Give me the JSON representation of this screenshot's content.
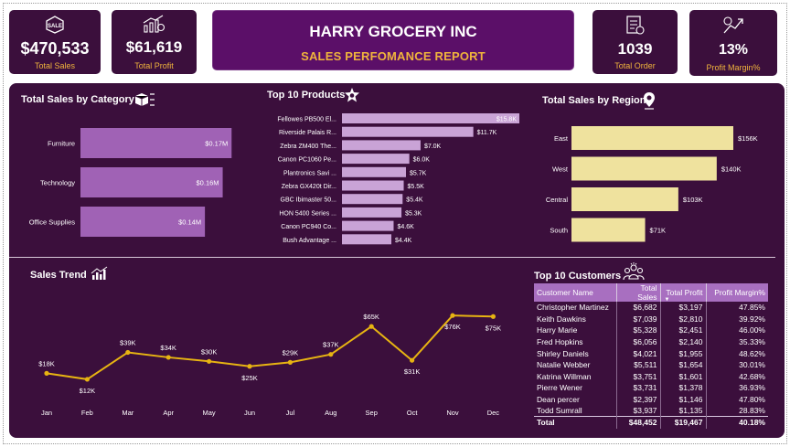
{
  "kpis": {
    "total_sales": {
      "value": "$470,533",
      "label": "Total Sales"
    },
    "total_profit": {
      "value": "$61,619",
      "label": "Total Profit"
    },
    "total_order": {
      "value": "1039",
      "label": "Total Order"
    },
    "profit_margin": {
      "value": "13%",
      "label": "Profit Margin%"
    }
  },
  "header": {
    "title": "HARRY GROCERY INC",
    "subtitle": "SALES PERFOMANCE REPORT"
  },
  "colors": {
    "bg": "#3b0f3c",
    "category_bar": "#a062b5",
    "product_bar": "#c9a3d6",
    "region_bar": "#efe29e",
    "trend_line": "#e7b412",
    "accent": "#f0b43c"
  },
  "icons": [
    "sales-tag-icon",
    "profit-chart-icon",
    "order-list-icon",
    "margin-chart-icon",
    "boxes-icon",
    "star-badge-icon",
    "location-pin-icon",
    "trend-chart-icon",
    "people-icon"
  ],
  "chart_data": [
    {
      "type": "bar",
      "orientation": "horizontal",
      "title": "Total Sales by Category",
      "categories": [
        "Furniture",
        "Technology",
        "Office Supplies"
      ],
      "values": [
        0.17,
        0.16,
        0.14
      ],
      "data_labels": [
        "$0.17M",
        "$0.16M",
        "$0.14M"
      ]
    },
    {
      "type": "bar",
      "orientation": "horizontal",
      "title": "Top 10 Products",
      "categories": [
        "Fellowes PB500 El...",
        "Riverside Palais R...",
        "Zebra ZM400 The...",
        "Canon PC1060 Pe...",
        "Plantronics Savi ...",
        "Zebra GX420t Dir...",
        "GBC Ibimaster 50...",
        "HON 5400 Series ...",
        "Canon PC940 Co...",
        "Bush Advantage ..."
      ],
      "values": [
        15.8,
        11.7,
        7.0,
        6.0,
        5.7,
        5.5,
        5.4,
        5.3,
        4.6,
        4.4
      ],
      "data_labels": [
        "$15.8K",
        "$11.7K",
        "$7.0K",
        "$6.0K",
        "$5.7K",
        "$5.5K",
        "$5.4K",
        "$5.3K",
        "$4.6K",
        "$4.4K"
      ]
    },
    {
      "type": "bar",
      "orientation": "horizontal",
      "title": "Total Sales by Region",
      "categories": [
        "East",
        "West",
        "Central",
        "South"
      ],
      "values": [
        156,
        140,
        103,
        71
      ],
      "data_labels": [
        "$156K",
        "$140K",
        "$103K",
        "$71K"
      ]
    },
    {
      "type": "line",
      "title": "Sales Trend",
      "categories": [
        "Jan",
        "Feb",
        "Mar",
        "Apr",
        "May",
        "Jun",
        "Jul",
        "Aug",
        "Sep",
        "Oct",
        "Nov",
        "Dec"
      ],
      "values": [
        18,
        12,
        39,
        34,
        30,
        25,
        29,
        37,
        65,
        31,
        76,
        75
      ],
      "data_labels": [
        "$18K",
        "$12K",
        "$39K",
        "$34K",
        "$30K",
        "$25K",
        "$29K",
        "$37K",
        "$65K",
        "$31K",
        "$76K",
        "$75K"
      ]
    },
    {
      "type": "table",
      "title": "Top 10 Customers",
      "columns": [
        "Customer Name",
        "Total Sales",
        "Total Profit",
        "Profit Margin%"
      ],
      "rows": [
        [
          "Christopher Martinez",
          "$6,682",
          "$3,197",
          "47.85%"
        ],
        [
          "Keith Dawkins",
          "$7,039",
          "$2,810",
          "39.92%"
        ],
        [
          "Harry Marie",
          "$5,328",
          "$2,451",
          "46.00%"
        ],
        [
          "Fred Hopkins",
          "$6,056",
          "$2,140",
          "35.33%"
        ],
        [
          "Shirley Daniels",
          "$4,021",
          "$1,955",
          "48.62%"
        ],
        [
          "Natalie Webber",
          "$5,511",
          "$1,654",
          "30.01%"
        ],
        [
          "Katrina Willman",
          "$3,751",
          "$1,601",
          "42.68%"
        ],
        [
          "Pierre Wener",
          "$3,731",
          "$1,378",
          "36.93%"
        ],
        [
          "Dean percer",
          "$2,397",
          "$1,146",
          "47.80%"
        ],
        [
          "Todd Sumrall",
          "$3,937",
          "$1,135",
          "28.83%"
        ]
      ],
      "total": [
        "Total",
        "$48,452",
        "$19,467",
        "40.18%"
      ]
    }
  ]
}
